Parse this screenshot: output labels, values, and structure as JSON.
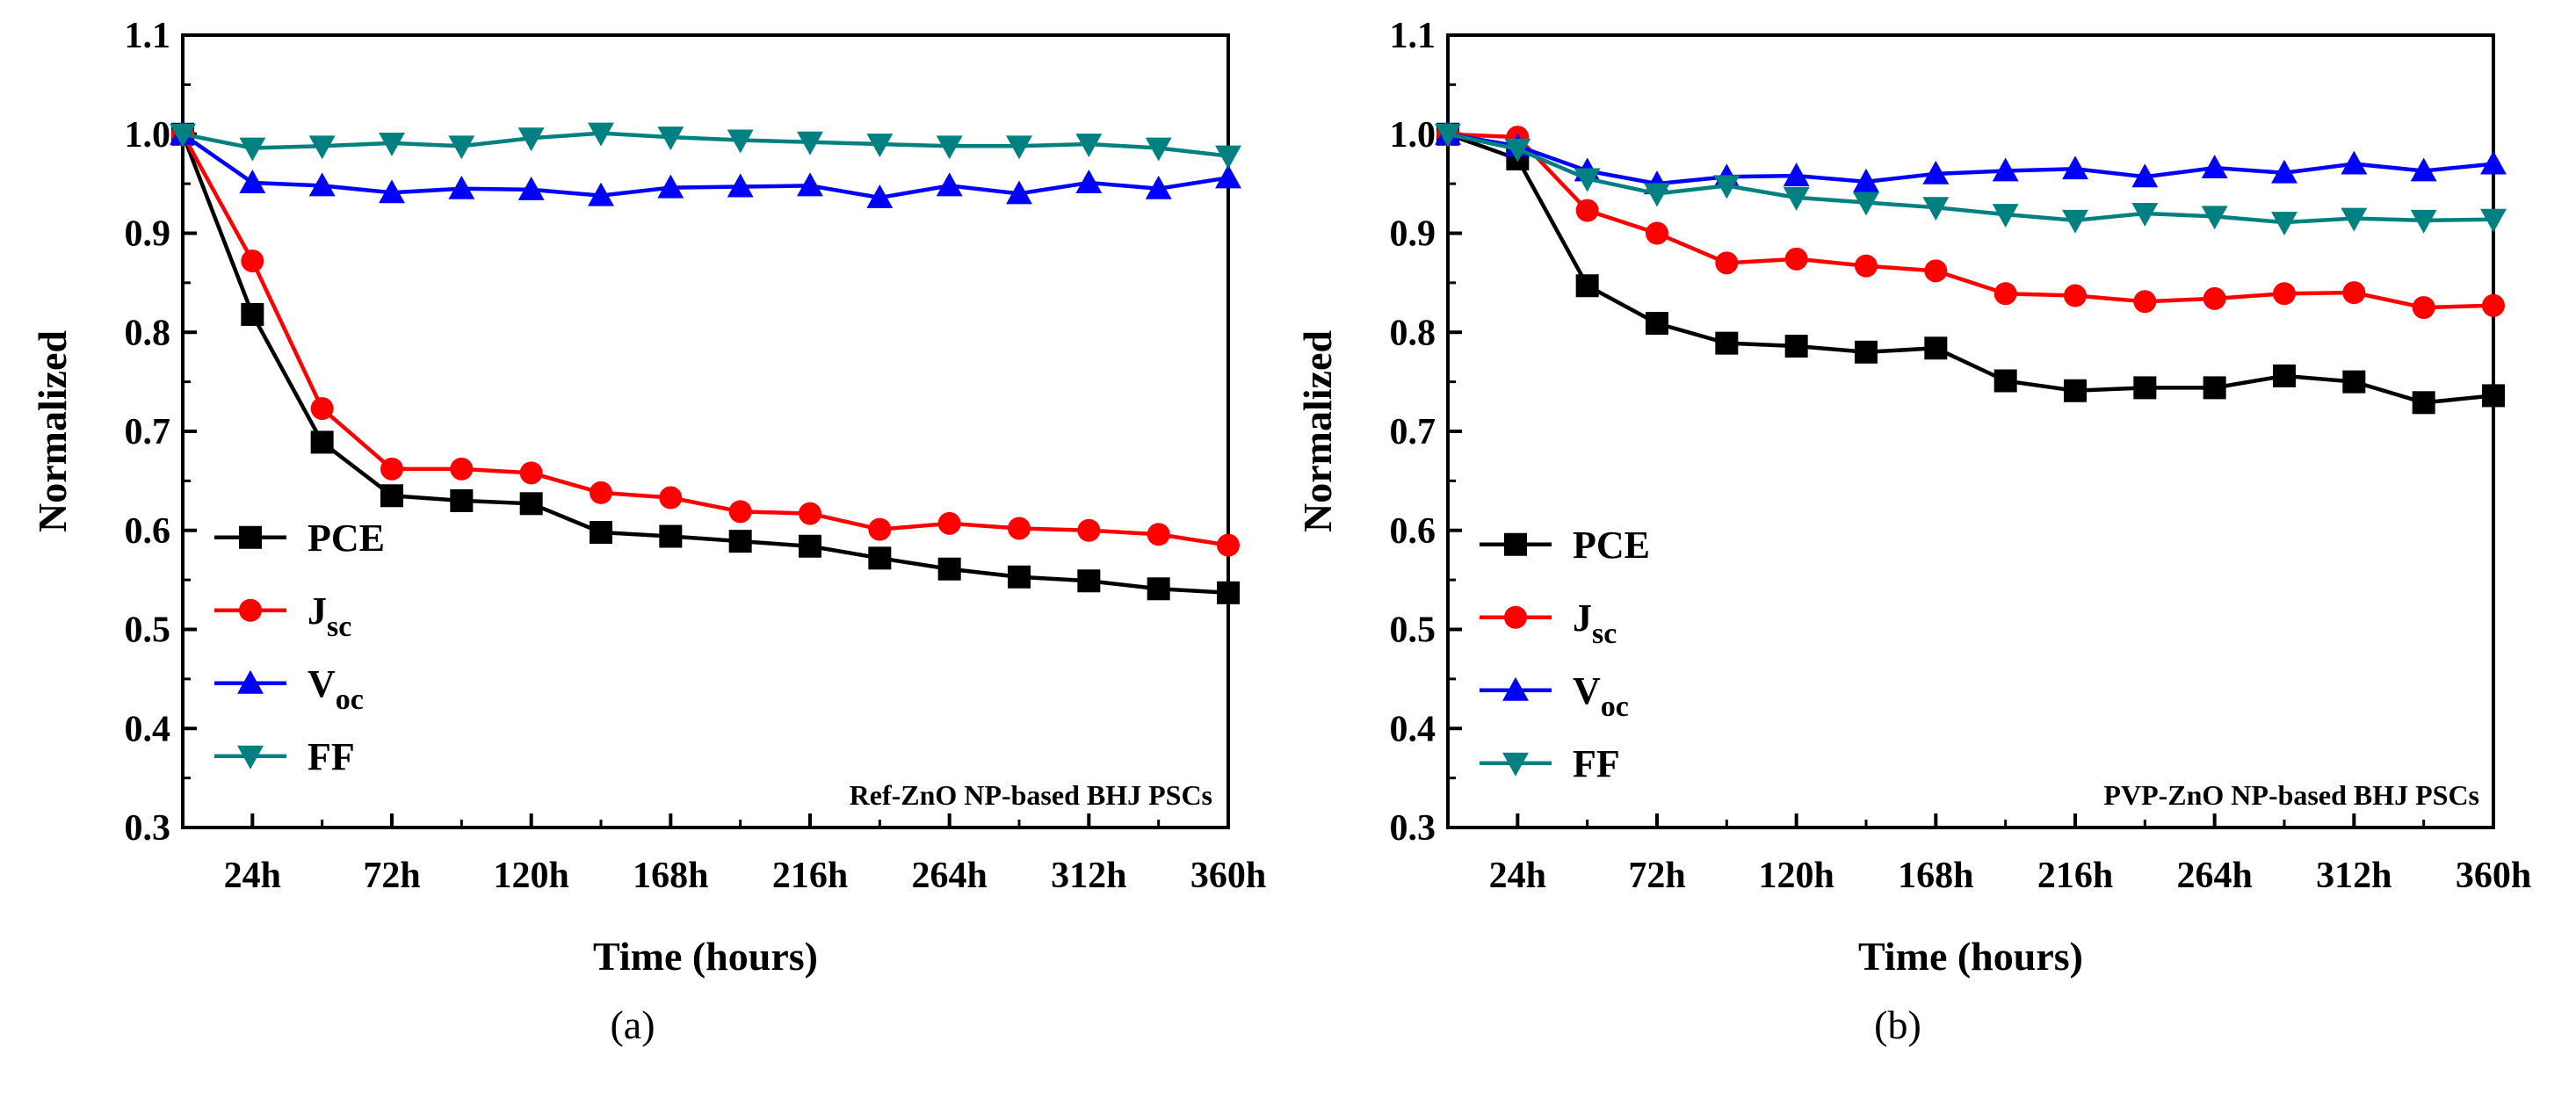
{
  "chart_data": [
    {
      "type": "line",
      "panel_label": "(a)",
      "annotation": "Ref-ZnO NP-based BHJ PSCs",
      "xlabel": "Time (hours)",
      "ylabel": "Normalized",
      "xlim": [
        0,
        360
      ],
      "ylim": [
        0.3,
        1.1
      ],
      "x_tick_values": [
        24,
        72,
        120,
        168,
        216,
        264,
        312,
        360
      ],
      "x_tick_labels": [
        "24h",
        "72h",
        "120h",
        "168h",
        "216h",
        "264h",
        "312h",
        "360h"
      ],
      "y_ticks": [
        0.3,
        0.4,
        0.5,
        0.6,
        0.7,
        0.8,
        0.9,
        1.0,
        1.1
      ],
      "y_tick_labels": [
        "0.3",
        "0.4",
        "0.5",
        "0.6",
        "0.7",
        "0.8",
        "0.9",
        "1.0",
        "1.1"
      ],
      "legend_position": "lower-left",
      "x": [
        0,
        24,
        48,
        72,
        96,
        120,
        144,
        168,
        192,
        216,
        240,
        264,
        288,
        312,
        336,
        360
      ],
      "series": [
        {
          "name": "PCE",
          "main": "PCE",
          "sub": "",
          "color": "#000000",
          "marker": "square",
          "values": [
            1.0,
            0.818,
            0.689,
            0.635,
            0.63,
            0.627,
            0.598,
            0.594,
            0.589,
            0.584,
            0.572,
            0.561,
            0.553,
            0.549,
            0.541,
            0.537
          ]
        },
        {
          "name": "Jsc",
          "main": "J",
          "sub": "sc",
          "color": "#ff0000",
          "marker": "circle",
          "values": [
            1.0,
            0.872,
            0.723,
            0.662,
            0.662,
            0.658,
            0.638,
            0.633,
            0.619,
            0.617,
            0.601,
            0.607,
            0.602,
            0.6,
            0.596,
            0.585
          ]
        },
        {
          "name": "Voc",
          "main": "V",
          "sub": "oc",
          "color": "#0000ff",
          "marker": "triangle-up",
          "values": [
            1.0,
            0.951,
            0.948,
            0.941,
            0.945,
            0.944,
            0.938,
            0.946,
            0.947,
            0.948,
            0.936,
            0.948,
            0.94,
            0.951,
            0.945,
            0.956
          ]
        },
        {
          "name": "FF",
          "main": "FF",
          "sub": "",
          "color": "#008080",
          "marker": "triangle-down",
          "values": [
            1.0,
            0.986,
            0.988,
            0.991,
            0.988,
            0.996,
            1.001,
            0.997,
            0.994,
            0.992,
            0.99,
            0.988,
            0.988,
            0.99,
            0.986,
            0.978
          ]
        }
      ]
    },
    {
      "type": "line",
      "panel_label": "(b)",
      "annotation": "PVP-ZnO NP-based BHJ PSCs",
      "xlabel": "Time (hours)",
      "ylabel": "Normalized",
      "xlim": [
        0,
        360
      ],
      "ylim": [
        0.3,
        1.1
      ],
      "x_tick_values": [
        24,
        72,
        120,
        168,
        216,
        264,
        312,
        360
      ],
      "x_tick_labels": [
        "24h",
        "72h",
        "120h",
        "168h",
        "216h",
        "264h",
        "312h",
        "360h"
      ],
      "y_ticks": [
        0.3,
        0.4,
        0.5,
        0.6,
        0.7,
        0.8,
        0.9,
        1.0,
        1.1
      ],
      "y_tick_labels": [
        "0.3",
        "0.4",
        "0.5",
        "0.6",
        "0.7",
        "0.8",
        "0.9",
        "1.0",
        "1.1"
      ],
      "legend_position": "lower-left",
      "x": [
        0,
        24,
        48,
        72,
        96,
        120,
        144,
        168,
        192,
        216,
        240,
        264,
        288,
        312,
        336,
        360
      ],
      "series": [
        {
          "name": "PCE",
          "main": "PCE",
          "sub": "",
          "color": "#000000",
          "marker": "square",
          "values": [
            1.0,
            0.975,
            0.847,
            0.809,
            0.789,
            0.786,
            0.78,
            0.784,
            0.751,
            0.741,
            0.744,
            0.744,
            0.756,
            0.75,
            0.729,
            0.736
          ]
        },
        {
          "name": "Jsc",
          "main": "J",
          "sub": "sc",
          "color": "#ff0000",
          "marker": "circle",
          "values": [
            1.0,
            0.997,
            0.923,
            0.9,
            0.87,
            0.874,
            0.867,
            0.862,
            0.839,
            0.837,
            0.831,
            0.834,
            0.839,
            0.84,
            0.825,
            0.827
          ]
        },
        {
          "name": "Voc",
          "main": "V",
          "sub": "oc",
          "color": "#0000ff",
          "marker": "triangle-up",
          "values": [
            1.0,
            0.988,
            0.963,
            0.95,
            0.957,
            0.958,
            0.952,
            0.96,
            0.963,
            0.965,
            0.957,
            0.966,
            0.961,
            0.97,
            0.963,
            0.97
          ]
        },
        {
          "name": "FF",
          "main": "FF",
          "sub": "",
          "color": "#008080",
          "marker": "triangle-down",
          "values": [
            1.0,
            0.985,
            0.955,
            0.94,
            0.948,
            0.936,
            0.931,
            0.926,
            0.919,
            0.913,
            0.92,
            0.917,
            0.911,
            0.915,
            0.913,
            0.914
          ]
        }
      ]
    }
  ]
}
